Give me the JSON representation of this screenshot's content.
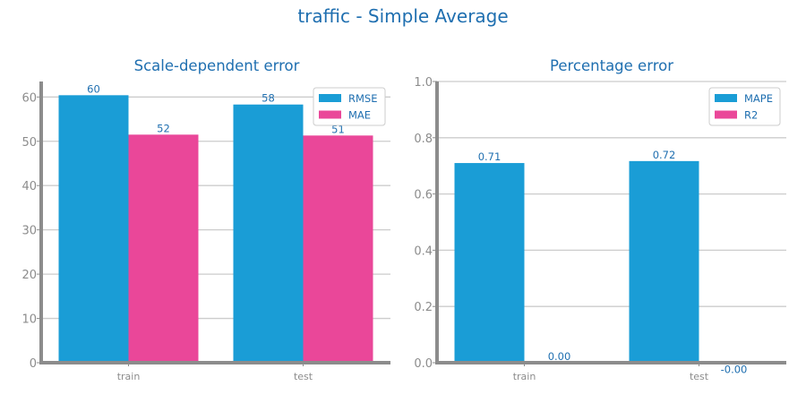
{
  "title": "traffic - Simple Average",
  "colors": {
    "series1": "#1a9dd6",
    "series2": "#ea4799",
    "axis": "#8c8c8c",
    "grid": "#cccccc",
    "text": "#1f6fb0"
  },
  "chart_data": [
    {
      "type": "bar",
      "title": "Scale-dependent error",
      "categories": [
        "train",
        "test"
      ],
      "ylim": [
        0,
        63.5
      ],
      "yticks": [
        0,
        10,
        20,
        30,
        40,
        50,
        60
      ],
      "yticklabels": [
        "0",
        "10",
        "20",
        "30",
        "40",
        "50",
        "60"
      ],
      "grid": true,
      "legend": "top-right",
      "series": [
        {
          "name": "RMSE",
          "values": [
            60.4,
            58.3
          ],
          "labels": [
            "60",
            "58"
          ]
        },
        {
          "name": "MAE",
          "values": [
            51.5,
            51.3
          ],
          "labels": [
            "52",
            "51"
          ]
        }
      ]
    },
    {
      "type": "bar",
      "title": "Percentage error",
      "categories": [
        "train",
        "test"
      ],
      "ylim": [
        0,
        1.0
      ],
      "yticks": [
        0,
        0.2,
        0.4,
        0.6,
        0.8,
        1.0
      ],
      "yticklabels": [
        "0.0",
        "0.2",
        "0.4",
        "0.6",
        "0.8",
        "1.0"
      ],
      "grid": true,
      "legend": "top-right",
      "series": [
        {
          "name": "MAPE",
          "values": [
            0.71,
            0.717
          ],
          "labels": [
            "0.71",
            "0.72"
          ]
        },
        {
          "name": "R2",
          "values": [
            0.0,
            -0.001
          ],
          "labels": [
            "0.00",
            "-0.00"
          ]
        }
      ]
    }
  ]
}
